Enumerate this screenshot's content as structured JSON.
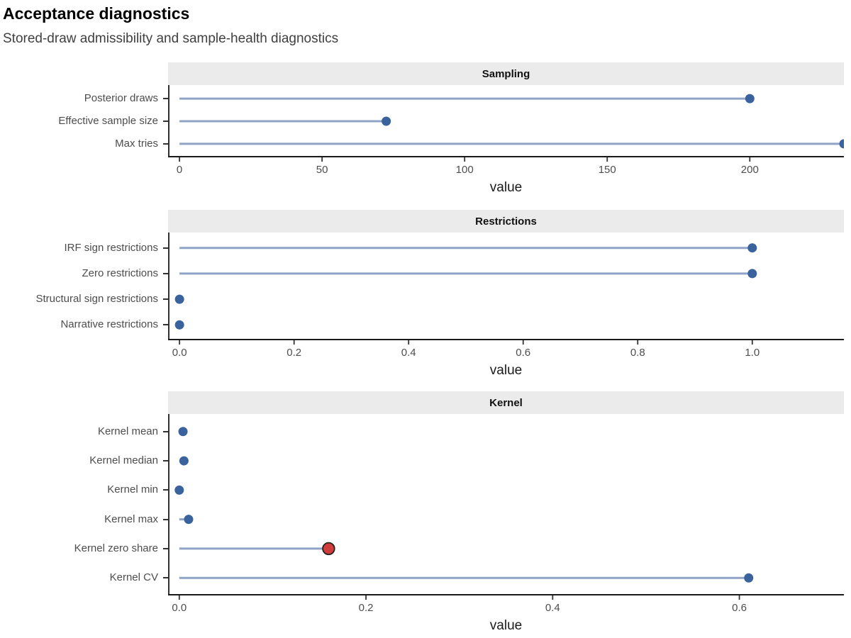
{
  "header": {
    "title": "Acceptance diagnostics",
    "subtitle": "Stored-draw admissibility and sample-health diagnostics"
  },
  "colors": {
    "stem": "#8EA3C6",
    "point": "#3A639E",
    "highlight_fill": "#D03C3C",
    "highlight_stroke": "#222222",
    "strip_bg": "#EBEBEB",
    "strip_text": "#111111",
    "axis_line": "#1A1A1A",
    "tick_mark": "#333333",
    "tick_text": "#4D4D4D",
    "axis_title_text": "#1A1A1A"
  },
  "chart_data": [
    {
      "type": "lollipop",
      "facet": "Sampling",
      "xlabel": "value",
      "xlim": [
        -4,
        233
      ],
      "grid": false,
      "legend": "none",
      "ticks": [
        {
          "value": 0,
          "label": "0"
        },
        {
          "value": 50,
          "label": "50"
        },
        {
          "value": 100,
          "label": "100"
        },
        {
          "value": 150,
          "label": "150"
        },
        {
          "value": 200,
          "label": "200"
        }
      ],
      "points": [
        {
          "label": "Posterior draws",
          "value": 200,
          "highlight": false,
          "clipped": false
        },
        {
          "label": "Effective sample size",
          "value": 72.5,
          "highlight": false,
          "clipped": false
        },
        {
          "label": "Max tries",
          "value": 233,
          "highlight": false,
          "clipped": true
        }
      ]
    },
    {
      "type": "lollipop",
      "facet": "Restrictions",
      "xlabel": "value",
      "xlim": [
        -0.02,
        1.16
      ],
      "grid": false,
      "legend": "none",
      "ticks": [
        {
          "value": 0.0,
          "label": "0.0"
        },
        {
          "value": 0.2,
          "label": "0.2"
        },
        {
          "value": 0.4,
          "label": "0.4"
        },
        {
          "value": 0.6,
          "label": "0.6"
        },
        {
          "value": 0.8,
          "label": "0.8"
        },
        {
          "value": 1.0,
          "label": "1.0"
        }
      ],
      "points": [
        {
          "label": "IRF sign restrictions",
          "value": 1.0,
          "highlight": false,
          "clipped": false
        },
        {
          "label": "Zero restrictions",
          "value": 1.0,
          "highlight": false,
          "clipped": false
        },
        {
          "label": "Structural sign restrictions",
          "value": 0.0,
          "highlight": false,
          "clipped": false
        },
        {
          "label": "Narrative restrictions",
          "value": 0.0,
          "highlight": false,
          "clipped": false
        }
      ]
    },
    {
      "type": "lollipop",
      "facet": "Kernel",
      "xlabel": "value",
      "xlim": [
        -0.012,
        0.712
      ],
      "grid": false,
      "legend": "none",
      "ticks": [
        {
          "value": 0.0,
          "label": "0.0"
        },
        {
          "value": 0.2,
          "label": "0.2"
        },
        {
          "value": 0.4,
          "label": "0.4"
        },
        {
          "value": 0.6,
          "label": "0.6"
        }
      ],
      "points": [
        {
          "label": "Kernel mean",
          "value": 0.004,
          "highlight": false,
          "clipped": false
        },
        {
          "label": "Kernel median",
          "value": 0.005,
          "highlight": false,
          "clipped": false
        },
        {
          "label": "Kernel min",
          "value": 0.0,
          "highlight": false,
          "clipped": false
        },
        {
          "label": "Kernel max",
          "value": 0.01,
          "highlight": false,
          "clipped": false
        },
        {
          "label": "Kernel zero share",
          "value": 0.16,
          "highlight": true,
          "clipped": false
        },
        {
          "label": "Kernel CV",
          "value": 0.61,
          "highlight": false,
          "clipped": false
        }
      ]
    }
  ]
}
